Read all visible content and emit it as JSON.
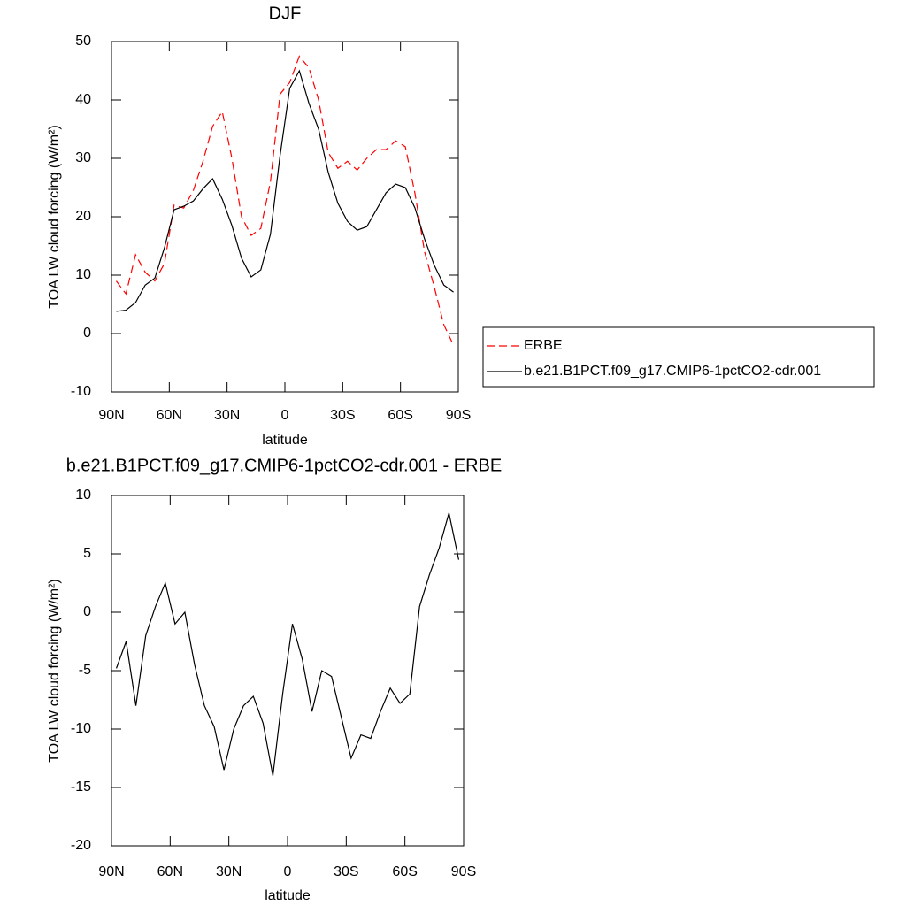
{
  "chart_data": [
    {
      "type": "line",
      "title": "DJF",
      "xlabel": "latitude",
      "ylabel": "TOA LW cloud forcing (W/m²)",
      "x": [
        87.5,
        82.5,
        77.5,
        72.5,
        67.5,
        62.5,
        57.5,
        52.5,
        47.5,
        42.5,
        37.5,
        32.5,
        27.5,
        22.5,
        17.5,
        12.5,
        7.5,
        2.5,
        -2.5,
        -7.5,
        -12.5,
        -17.5,
        -22.5,
        -27.5,
        -32.5,
        -37.5,
        -42.5,
        -47.5,
        -52.5,
        -57.5,
        -62.5,
        -67.5,
        -72.5,
        -77.5,
        -82.5,
        -87.5
      ],
      "series": [
        {
          "name": "ERBE",
          "color": "#ff0000",
          "style": "dashed",
          "values": [
            9.0,
            6.8,
            13.5,
            10.5,
            9.0,
            12.0,
            22,
            21.5,
            24.5,
            29.5,
            35.5,
            38,
            30,
            20,
            16.8,
            18,
            26,
            41,
            43,
            47.5,
            45.5,
            40,
            31,
            28.3,
            29.5,
            28,
            30,
            31.5,
            31.5,
            33,
            32,
            24,
            14,
            8,
            1.5,
            -2
          ]
        },
        {
          "name": "b.e21.B1PCT.f09_g17.CMIP6-1pctCO2-cdr.001",
          "color": "#000000",
          "style": "solid",
          "values": [
            3.8,
            4.0,
            5.3,
            8.3,
            9.5,
            14.7,
            21.2,
            21.8,
            22.7,
            24.8,
            26.5,
            23.0,
            18.5,
            12.9,
            9.7,
            10.9,
            17,
            30.5,
            42,
            45,
            39.4,
            35,
            27.6,
            22.3,
            19.2,
            17.7,
            18.3,
            21.2,
            24.1,
            25.6,
            25,
            21.5,
            16.2,
            11.7,
            8.3,
            7.1
          ]
        }
      ],
      "xlim": [
        90,
        -90
      ],
      "xticks": [
        {
          "value": 90,
          "label": "90N"
        },
        {
          "value": 60,
          "label": "60N"
        },
        {
          "value": 30,
          "label": "30N"
        },
        0,
        {
          "value": -30,
          "label": "30S"
        },
        {
          "value": -60,
          "label": "60S"
        },
        {
          "value": -90,
          "label": "90S"
        }
      ],
      "ylim": [
        -10,
        50
      ],
      "yticks": [
        -10,
        0,
        10,
        20,
        30,
        40,
        50
      ],
      "legend": true
    },
    {
      "type": "line",
      "title": "b.e21.B1PCT.f09_g17.CMIP6-1pctCO2-cdr.001 - ERBE",
      "xlabel": "latitude",
      "ylabel": "TOA LW cloud forcing (W/m²)",
      "x": [
        87.5,
        82.5,
        77.5,
        72.5,
        67.5,
        62.5,
        57.5,
        52.5,
        47.5,
        42.5,
        37.5,
        32.5,
        27.5,
        22.5,
        17.5,
        12.5,
        7.5,
        2.5,
        -2.5,
        -7.5,
        -12.5,
        -17.5,
        -22.5,
        -27.5,
        -32.5,
        -37.5,
        -42.5,
        -47.5,
        -52.5,
        -57.5,
        -62.5,
        -67.5,
        -72.5,
        -77.5,
        -82.5,
        -87.5
      ],
      "values": [
        -4.8,
        -2.5,
        -8,
        -2,
        0.5,
        2.5,
        -1,
        0,
        -4.5,
        -8,
        -9.8,
        -13.5,
        -10,
        -8,
        -7.2,
        -9.5,
        -14,
        -7,
        -1,
        -4,
        -8.5,
        -5,
        -5.5,
        -9,
        -12.5,
        -10.5,
        -10.8,
        -8.5,
        -6.5,
        -7.8,
        -7,
        0.5,
        3.2,
        5.5,
        8.5,
        4.5
      ],
      "color": "#000000",
      "xlim": [
        90,
        -90
      ],
      "xticks": [
        {
          "value": 90,
          "label": "90N"
        },
        {
          "value": 60,
          "label": "60N"
        },
        {
          "value": 30,
          "label": "30N"
        },
        0,
        {
          "value": -30,
          "label": "30S"
        },
        {
          "value": -60,
          "label": "60S"
        },
        {
          "value": -90,
          "label": "90S"
        }
      ],
      "ylim": [
        -20,
        10
      ],
      "yticks": [
        -20,
        -15,
        -10,
        -5,
        0,
        5,
        10
      ]
    }
  ]
}
